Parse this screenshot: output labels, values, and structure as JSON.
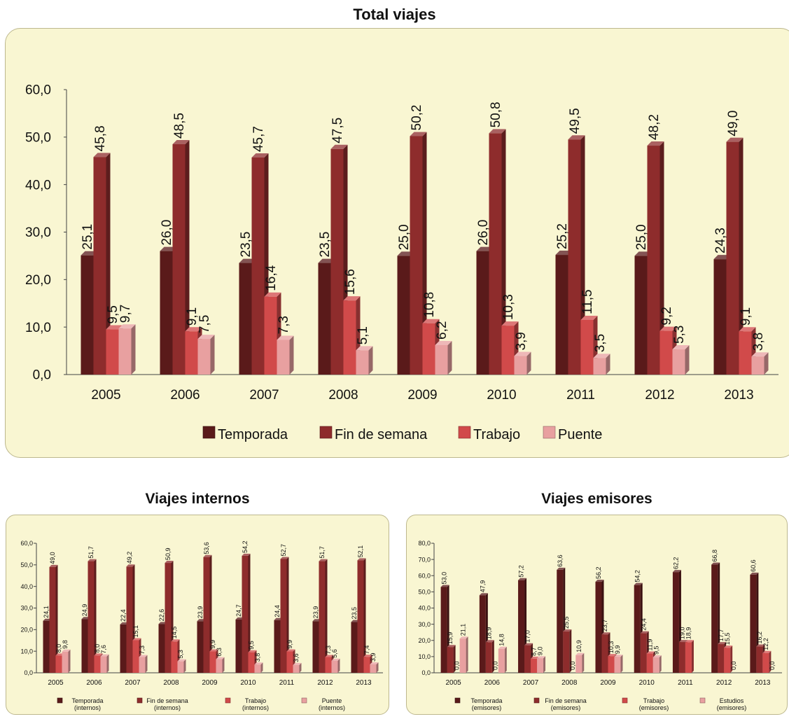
{
  "chart_data": [
    {
      "type": "bar",
      "title": "Total viajes",
      "categories": [
        "2005",
        "2006",
        "2007",
        "2008",
        "2009",
        "2010",
        "2011",
        "2012",
        "2013"
      ],
      "ylim": [
        0,
        60
      ],
      "yticks": [
        "0,0",
        "10,0",
        "20,0",
        "30,0",
        "40,0",
        "50,0",
        "60,0"
      ],
      "legend_position": "bottom",
      "series": [
        {
          "name": "Temporada",
          "color": "#5a1a1a",
          "values": [
            25.1,
            26.0,
            23.5,
            23.5,
            25.0,
            26.0,
            25.2,
            25.0,
            24.3
          ],
          "labels": [
            "25,1",
            "26,0",
            "23,5",
            "23,5",
            "25,0",
            "26,0",
            "25,2",
            "25,0",
            "24,3"
          ]
        },
        {
          "name": "Fin de semana",
          "color": "#8e2c2c",
          "values": [
            45.8,
            48.5,
            45.7,
            47.5,
            50.2,
            50.8,
            49.5,
            48.2,
            49.0
          ],
          "labels": [
            "45,8",
            "48,5",
            "45,7",
            "47,5",
            "50,2",
            "50,8",
            "49,5",
            "48,2",
            "49,0"
          ]
        },
        {
          "name": "Trabajo",
          "color": "#d14a4a",
          "values": [
            9.5,
            9.1,
            16.4,
            15.6,
            10.8,
            10.3,
            11.5,
            9.2,
            9.1
          ],
          "labels": [
            "9,5",
            "9,1",
            "16,4",
            "15,6",
            "10,8",
            "10,3",
            "11,5",
            "9,2",
            "9,1"
          ]
        },
        {
          "name": "Puente",
          "color": "#e8a0a0",
          "values": [
            9.7,
            7.5,
            7.3,
            5.1,
            6.2,
            3.9,
            3.5,
            5.3,
            3.8
          ],
          "labels": [
            "9,7",
            "7,5",
            "7,3",
            "5,1",
            "6,2",
            "3,9",
            "3,5",
            "5,3",
            "3,8"
          ]
        }
      ]
    },
    {
      "type": "bar",
      "title": "Viajes internos",
      "categories": [
        "2005",
        "2006",
        "2007",
        "2008",
        "2009",
        "2010",
        "2011",
        "2012",
        "2013"
      ],
      "ylim": [
        0,
        60
      ],
      "yticks": [
        "0,0",
        "10,0",
        "20,0",
        "30,0",
        "40,0",
        "50,0",
        "60,0"
      ],
      "legend_position": "bottom",
      "series": [
        {
          "name": "Temporada (internos)",
          "legend_lines": [
            "Temporada",
            "(internos)"
          ],
          "color": "#5a1a1a",
          "values": [
            24.1,
            24.9,
            22.4,
            22.6,
            23.9,
            24.7,
            24.4,
            23.9,
            23.5
          ],
          "labels": [
            "24,1",
            "24,9",
            "22,4",
            "22,6",
            "23,9",
            "24,7",
            "24,4",
            "23,9",
            "23,5"
          ]
        },
        {
          "name": "Fin de semana (internos)",
          "legend_lines": [
            "Fin de semana",
            "(internos)"
          ],
          "color": "#8e2c2c",
          "values": [
            49.0,
            51.7,
            49.2,
            50.9,
            53.6,
            54.2,
            52.7,
            51.7,
            52.1
          ],
          "labels": [
            "49,0",
            "51,7",
            "49,2",
            "50,9",
            "53,6",
            "54,2",
            "52,7",
            "51,7",
            "52,1"
          ]
        },
        {
          "name": "Trabajo (internos)",
          "legend_lines": [
            "Trabajo",
            "(internos)"
          ],
          "color": "#d14a4a",
          "values": [
            8.0,
            8.0,
            15.1,
            14.5,
            9.9,
            9.5,
            9.9,
            7.3,
            7.4
          ],
          "labels": [
            "8,0",
            "8,0",
            "15,1",
            "14,5",
            "9,9",
            "9,5",
            "9,9",
            "7,3",
            "7,4"
          ]
        },
        {
          "name": "Puente (internos)",
          "legend_lines": [
            "Puente",
            "(internos)"
          ],
          "color": "#e8a0a0",
          "values": [
            9.8,
            7.6,
            7.3,
            5.3,
            6.3,
            3.8,
            3.6,
            5.6,
            3.9
          ],
          "labels": [
            "9,8",
            "7,6",
            "7,3",
            "5,3",
            "6,3",
            "3,8",
            "3,6",
            "5,6",
            "3,9"
          ]
        }
      ]
    },
    {
      "type": "bar",
      "title": "Viajes emisores",
      "categories": [
        "2005",
        "2006",
        "2007",
        "2008",
        "2009",
        "2010",
        "2011",
        "2012",
        "2013"
      ],
      "ylim": [
        0,
        80
      ],
      "yticks": [
        "0,0",
        "10,0",
        "20,0",
        "30,0",
        "40,0",
        "50,0",
        "60,0",
        "70,0",
        "80,0"
      ],
      "legend_position": "bottom",
      "series": [
        {
          "name": "Temporada (emisores)",
          "legend_lines": [
            "Temporada",
            "(emisores)"
          ],
          "color": "#5a1a1a",
          "values": [
            53.0,
            47.9,
            57.2,
            63.6,
            56.2,
            54.2,
            62.2,
            66.8,
            60.6
          ],
          "labels": [
            "53,0",
            "47,9",
            "57,2",
            "63,6",
            "56,2",
            "54,2",
            "62,2",
            "66,8",
            "60,6"
          ]
        },
        {
          "name": "Fin de semana (emisores)",
          "legend_lines": [
            "Fin de semana",
            "(emisores)"
          ],
          "color": "#8e2c2c",
          "values": [
            15.9,
            18.9,
            17.0,
            25.5,
            23.7,
            24.4,
            19.0,
            17.7,
            16.2
          ],
          "labels": [
            "15,9",
            "18,9",
            "17,0",
            "25,5",
            "23,7",
            "24,4",
            "19,0",
            "17,7",
            "16,2"
          ]
        },
        {
          "name": "Trabajo (emisores)",
          "legend_lines": [
            "Trabajo",
            "(emisores)"
          ],
          "color": "#d14a4a",
          "values": [
            0.0,
            0.0,
            8.7,
            0.0,
            10.3,
            11.9,
            18.9,
            15.5,
            12.2
          ],
          "labels": [
            "0,0",
            "0,0",
            "8,7",
            "0,0",
            "10,3",
            "11,9",
            "18,9",
            "15,5",
            "12,2"
          ]
        },
        {
          "name": "Estudios (emisores)",
          "legend_lines": [
            "Estudios",
            "(emisores)"
          ],
          "color": "#e8a0a0",
          "values": [
            21.1,
            14.8,
            9.0,
            10.9,
            9.9,
            9.5,
            0.0,
            0.0,
            0.0
          ],
          "labels": [
            "21,1",
            "14,8",
            "9,0",
            "10,9",
            "9,9",
            "9,5",
            "",
            "0,0",
            "0,0"
          ]
        }
      ]
    }
  ]
}
